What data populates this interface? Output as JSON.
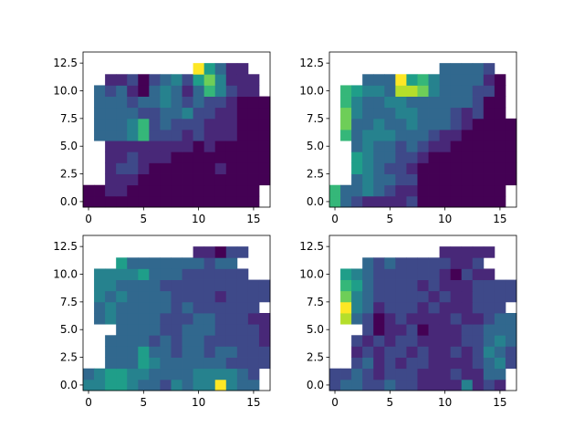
{
  "chart_data": [
    {
      "type": "heatmap",
      "colormap": "viridis",
      "vmin": 0,
      "vmax": 9,
      "xlim": [
        -0.5,
        16.5
      ],
      "ylim": [
        13.5,
        -0.5
      ],
      "xticks": [
        0,
        5,
        10,
        15
      ],
      "xtick_labels": [
        "0",
        "5",
        "10",
        "15"
      ],
      "yticks": [
        0.0,
        2.5,
        5.0,
        7.5,
        10.0,
        12.5
      ],
      "ytick_labels": [
        "0.0",
        "2.5",
        "5.0",
        "7.5",
        "10.0",
        "12.5"
      ],
      "grid": false,
      "matrix": [
        [
          0,
          0,
          0,
          0,
          0,
          0,
          0,
          0,
          0,
          0,
          0,
          0,
          0,
          0,
          0,
          0,
          null
        ],
        [
          0,
          0,
          1,
          1,
          0,
          0,
          0,
          0,
          0,
          0,
          0,
          0,
          0,
          0,
          0,
          0,
          null
        ],
        [
          null,
          null,
          1,
          1,
          1,
          0,
          0,
          0,
          0,
          0,
          0,
          0,
          0,
          0,
          0,
          0,
          0
        ],
        [
          null,
          null,
          1,
          2,
          2,
          1,
          0,
          0,
          0,
          0,
          0,
          0,
          1,
          0,
          0,
          0,
          0
        ],
        [
          null,
          null,
          1,
          1,
          2,
          1,
          1,
          1,
          0,
          0,
          0,
          0,
          0,
          0,
          0,
          0,
          0
        ],
        [
          null,
          null,
          1,
          1,
          1,
          1,
          1,
          1,
          1,
          1,
          0,
          1,
          0,
          0,
          0,
          0,
          0
        ],
        [
          null,
          3,
          3,
          3,
          4,
          6,
          2,
          2,
          2,
          1,
          2,
          1,
          1,
          1,
          0,
          0,
          0
        ],
        [
          null,
          3,
          3,
          3,
          4,
          6,
          2,
          3,
          2,
          2,
          2,
          1,
          1,
          1,
          0,
          0,
          0
        ],
        [
          null,
          3,
          3,
          3,
          3,
          2,
          2,
          3,
          3,
          4,
          2,
          2,
          1,
          1,
          0,
          0,
          0
        ],
        [
          null,
          3,
          3,
          3,
          2,
          3,
          3,
          4,
          3,
          2,
          3,
          2,
          2,
          1,
          0,
          0,
          0
        ],
        [
          null,
          3,
          2,
          3,
          1,
          0,
          3,
          4,
          3,
          1,
          3,
          6,
          4,
          2,
          1,
          1,
          null
        ],
        [
          null,
          null,
          1,
          1,
          2,
          0,
          2,
          3,
          4,
          2,
          5,
          7,
          4,
          1,
          1,
          1,
          null
        ],
        [
          null,
          null,
          null,
          null,
          null,
          null,
          null,
          null,
          null,
          null,
          9,
          5,
          3,
          1,
          1,
          null,
          null
        ],
        [
          null,
          null,
          null,
          null,
          null,
          null,
          null,
          null,
          null,
          null,
          null,
          null,
          null,
          null,
          null,
          null,
          null
        ]
      ]
    },
    {
      "type": "heatmap",
      "colormap": "viridis",
      "vmin": 0,
      "vmax": 9,
      "xlim": [
        -0.5,
        16.5
      ],
      "ylim": [
        13.5,
        -0.5
      ],
      "xticks": [
        0,
        5,
        10,
        15
      ],
      "xtick_labels": [
        "0",
        "5",
        "10",
        "15"
      ],
      "yticks": [
        0.0,
        2.5,
        5.0,
        7.5,
        10.0,
        12.5
      ],
      "ytick_labels": [
        "0.0",
        "2.5",
        "5.0",
        "7.5",
        "10.0",
        "12.5"
      ],
      "grid": false,
      "matrix": [
        [
          6,
          3,
          2,
          1,
          1,
          1,
          1,
          2,
          0,
          0,
          0,
          0,
          0,
          0,
          0,
          0,
          null
        ],
        [
          6,
          3,
          3,
          4,
          3,
          2,
          1,
          1,
          0,
          0,
          0,
          0,
          0,
          0,
          0,
          0,
          null
        ],
        [
          null,
          null,
          3,
          4,
          3,
          3,
          2,
          2,
          0,
          0,
          0,
          0,
          0,
          0,
          0,
          0,
          0
        ],
        [
          null,
          null,
          5,
          4,
          3,
          2,
          2,
          1,
          0,
          0,
          0,
          0,
          0,
          0,
          0,
          0,
          0
        ],
        [
          null,
          null,
          5,
          4,
          3,
          3,
          2,
          2,
          1,
          0,
          0,
          0,
          0,
          0,
          0,
          0,
          0
        ],
        [
          null,
          null,
          3,
          4,
          3,
          3,
          2,
          3,
          2,
          1,
          1,
          0,
          0,
          0,
          0,
          0,
          0
        ],
        [
          null,
          6,
          3,
          4,
          4,
          4,
          3,
          3,
          3,
          2,
          1,
          1,
          0,
          0,
          0,
          0,
          0
        ],
        [
          null,
          7,
          3,
          3,
          4,
          3,
          3,
          4,
          3,
          3,
          3,
          2,
          1,
          0,
          0,
          0,
          0
        ],
        [
          null,
          7,
          4,
          3,
          3,
          3,
          4,
          4,
          3,
          3,
          3,
          2,
          1,
          2,
          0,
          0,
          null
        ],
        [
          null,
          6,
          4,
          3,
          3,
          4,
          4,
          3,
          3,
          3,
          3,
          3,
          3,
          2,
          0,
          0,
          null
        ],
        [
          null,
          6,
          5,
          4,
          4,
          3,
          8,
          8,
          7,
          4,
          3,
          3,
          3,
          2,
          2,
          0,
          null
        ],
        [
          null,
          null,
          null,
          3,
          3,
          3,
          9,
          5,
          6,
          4,
          3,
          3,
          3,
          3,
          1,
          0,
          null
        ],
        [
          null,
          null,
          null,
          null,
          null,
          null,
          null,
          null,
          null,
          null,
          3,
          3,
          3,
          3,
          2,
          null,
          null
        ],
        [
          null,
          null,
          null,
          null,
          null,
          null,
          null,
          null,
          null,
          null,
          null,
          null,
          null,
          null,
          null,
          null,
          null
        ]
      ]
    },
    {
      "type": "heatmap",
      "colormap": "viridis",
      "vmin": 0,
      "vmax": 9,
      "xlim": [
        -0.5,
        16.5
      ],
      "ylim": [
        13.5,
        -0.5
      ],
      "xticks": [
        0,
        5,
        10,
        15
      ],
      "xtick_labels": [
        "0",
        "5",
        "10",
        "15"
      ],
      "yticks": [
        0.0,
        2.5,
        5.0,
        7.5,
        10.0,
        12.5
      ],
      "ytick_labels": [
        "0.0",
        "2.5",
        "5.0",
        "7.5",
        "10.0",
        "12.5"
      ],
      "grid": false,
      "matrix": [
        [
          4,
          4,
          5,
          5,
          4,
          3,
          3,
          2,
          4,
          3,
          4,
          4,
          9,
          4,
          3,
          3,
          null
        ],
        [
          3,
          4,
          5,
          5,
          4,
          4,
          3,
          3,
          3,
          3,
          4,
          4,
          4,
          4,
          3,
          2,
          null
        ],
        [
          null,
          null,
          3,
          3,
          3,
          5,
          4,
          3,
          3,
          3,
          3,
          3,
          3,
          2,
          2,
          2,
          2
        ],
        [
          null,
          null,
          3,
          3,
          3,
          5,
          3,
          3,
          2,
          3,
          3,
          2,
          3,
          3,
          2,
          2,
          2
        ],
        [
          null,
          null,
          3,
          3,
          3,
          3,
          2,
          3,
          2,
          3,
          3,
          2,
          2,
          2,
          2,
          2,
          1
        ],
        [
          null,
          null,
          null,
          3,
          3,
          3,
          3,
          2,
          2,
          3,
          3,
          3,
          2,
          2,
          2,
          2,
          1
        ],
        [
          null,
          3,
          4,
          3,
          3,
          3,
          3,
          2,
          2,
          2,
          3,
          3,
          2,
          2,
          2,
          1,
          1
        ],
        [
          null,
          3,
          4,
          3,
          3,
          3,
          3,
          3,
          2,
          3,
          2,
          2,
          2,
          2,
          2,
          2,
          null
        ],
        [
          null,
          4,
          3,
          4,
          3,
          3,
          3,
          3,
          2,
          2,
          2,
          2,
          1,
          2,
          2,
          2,
          2
        ],
        [
          null,
          4,
          4,
          3,
          3,
          3,
          3,
          2,
          2,
          2,
          2,
          2,
          2,
          2,
          2,
          2,
          2
        ],
        [
          null,
          4,
          4,
          4,
          4,
          5,
          3,
          3,
          3,
          2,
          2,
          2,
          2,
          2,
          2,
          null,
          null
        ],
        [
          null,
          null,
          null,
          5,
          3,
          3,
          3,
          3,
          3,
          3,
          3,
          2,
          3,
          3,
          null,
          null,
          null
        ],
        [
          null,
          null,
          null,
          null,
          null,
          null,
          null,
          null,
          null,
          null,
          1,
          1,
          0,
          2,
          2,
          null,
          null
        ],
        [
          null,
          null,
          null,
          null,
          null,
          null,
          null,
          null,
          null,
          null,
          null,
          null,
          null,
          null,
          null,
          null,
          null
        ]
      ]
    },
    {
      "type": "heatmap",
      "colormap": "viridis",
      "vmin": 0,
      "vmax": 9,
      "xlim": [
        -0.5,
        16.5
      ],
      "ylim": [
        13.5,
        -0.5
      ],
      "xticks": [
        0,
        5,
        10,
        15
      ],
      "xtick_labels": [
        "0",
        "5",
        "10",
        "15"
      ],
      "yticks": [
        0.0,
        2.5,
        5.0,
        7.5,
        10.0,
        12.5
      ],
      "ytick_labels": [
        "0.0",
        "2.5",
        "5.0",
        "7.5",
        "10.0",
        "12.5"
      ],
      "grid": false,
      "matrix": [
        [
          2,
          3,
          3,
          2,
          2,
          3,
          2,
          2,
          1,
          1,
          1,
          1,
          4,
          1,
          2,
          1,
          null
        ],
        [
          2,
          2,
          3,
          2,
          1,
          2,
          2,
          2,
          1,
          1,
          1,
          2,
          1,
          1,
          3,
          3,
          null
        ],
        [
          null,
          null,
          2,
          3,
          1,
          2,
          1,
          2,
          2,
          1,
          1,
          1,
          1,
          2,
          3,
          4,
          2
        ],
        [
          null,
          null,
          1,
          2,
          1,
          2,
          2,
          1,
          2,
          1,
          1,
          2,
          1,
          2,
          4,
          3,
          2
        ],
        [
          null,
          null,
          2,
          1,
          2,
          1,
          2,
          2,
          1,
          1,
          1,
          1,
          2,
          2,
          3,
          4,
          3
        ],
        [
          null,
          null,
          null,
          2,
          0,
          1,
          1,
          2,
          0,
          1,
          1,
          1,
          2,
          2,
          3,
          3,
          3
        ],
        [
          null,
          8,
          3,
          2,
          0,
          1,
          2,
          1,
          1,
          1,
          1,
          2,
          1,
          1,
          2,
          3,
          3
        ],
        [
          null,
          9,
          4,
          3,
          1,
          2,
          2,
          2,
          1,
          2,
          1,
          1,
          1,
          2,
          2,
          2,
          null
        ],
        [
          null,
          7,
          4,
          3,
          2,
          2,
          2,
          2,
          2,
          1,
          2,
          1,
          1,
          2,
          2,
          2,
          2
        ],
        [
          null,
          6,
          5,
          3,
          2,
          2,
          2,
          2,
          1,
          2,
          1,
          1,
          1,
          2,
          2,
          2,
          2
        ],
        [
          null,
          5,
          4,
          3,
          2,
          2,
          2,
          2,
          2,
          2,
          1,
          0,
          2,
          1,
          1,
          null,
          null
        ],
        [
          null,
          null,
          null,
          3,
          2,
          3,
          2,
          2,
          2,
          2,
          2,
          1,
          1,
          2,
          null,
          null,
          null
        ],
        [
          null,
          null,
          null,
          null,
          null,
          null,
          null,
          null,
          null,
          null,
          1,
          1,
          1,
          1,
          1,
          null,
          null
        ],
        [
          null,
          null,
          null,
          null,
          null,
          null,
          null,
          null,
          null,
          null,
          null,
          null,
          null,
          null,
          null,
          null,
          null
        ]
      ]
    }
  ]
}
